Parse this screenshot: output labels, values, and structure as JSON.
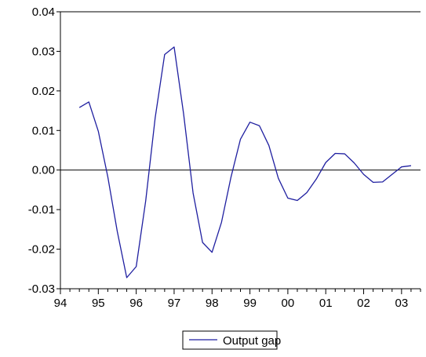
{
  "chart_data": {
    "type": "line",
    "title": "",
    "xlabel": "",
    "ylabel": "",
    "xlim": [
      1994.0,
      2003.5
    ],
    "ylim": [
      -0.03,
      0.04
    ],
    "x_ticks": [
      {
        "value": 1994.0,
        "label": "94"
      },
      {
        "value": 1995.0,
        "label": "95"
      },
      {
        "value": 1996.0,
        "label": "96"
      },
      {
        "value": 1997.0,
        "label": "97"
      },
      {
        "value": 1998.0,
        "label": "98"
      },
      {
        "value": 1999.0,
        "label": "99"
      },
      {
        "value": 2000.0,
        "label": "00"
      },
      {
        "value": 2001.0,
        "label": "01"
      },
      {
        "value": 2002.0,
        "label": "02"
      },
      {
        "value": 2003.0,
        "label": "03"
      }
    ],
    "y_ticks": [
      {
        "value": 0.04,
        "label": "0.04"
      },
      {
        "value": 0.03,
        "label": "0.03"
      },
      {
        "value": 0.02,
        "label": "0.02"
      },
      {
        "value": 0.01,
        "label": "0.01"
      },
      {
        "value": 0.0,
        "label": "0.00"
      },
      {
        "value": -0.01,
        "label": "-0.01"
      },
      {
        "value": -0.02,
        "label": "-0.02"
      },
      {
        "value": -0.03,
        "label": "-0.03"
      }
    ],
    "zero_line": 0.0,
    "grid": false,
    "legend_position": "bottom-center",
    "series": [
      {
        "name": "Output gap",
        "color": "#1f1fa0",
        "x": [
          1994.5,
          1994.75,
          1995.0,
          1995.25,
          1995.5,
          1995.75,
          1996.0,
          1996.25,
          1996.5,
          1996.75,
          1997.0,
          1997.25,
          1997.5,
          1997.75,
          1998.0,
          1998.25,
          1998.5,
          1998.75,
          1999.0,
          1999.25,
          1999.5,
          1999.75,
          2000.0,
          2000.25,
          2000.5,
          2000.75,
          2001.0,
          2001.25,
          2001.5,
          2001.75,
          2002.0,
          2002.25,
          2002.5,
          2002.75,
          2003.0,
          2003.25
        ],
        "y": [
          0.0158,
          0.0172,
          0.0098,
          -0.0017,
          -0.0155,
          -0.0272,
          -0.0244,
          -0.0078,
          0.0132,
          0.0292,
          0.0311,
          0.0142,
          -0.0058,
          -0.0183,
          -0.0208,
          -0.0132,
          -0.0018,
          0.0078,
          0.0121,
          0.0112,
          0.0062,
          -0.0021,
          -0.0071,
          -0.0077,
          -0.0057,
          -0.0023,
          0.0019,
          0.0042,
          0.0041,
          0.0018,
          -0.0011,
          -0.0031,
          -0.003,
          -0.0011,
          0.0008,
          0.0011
        ]
      }
    ]
  }
}
